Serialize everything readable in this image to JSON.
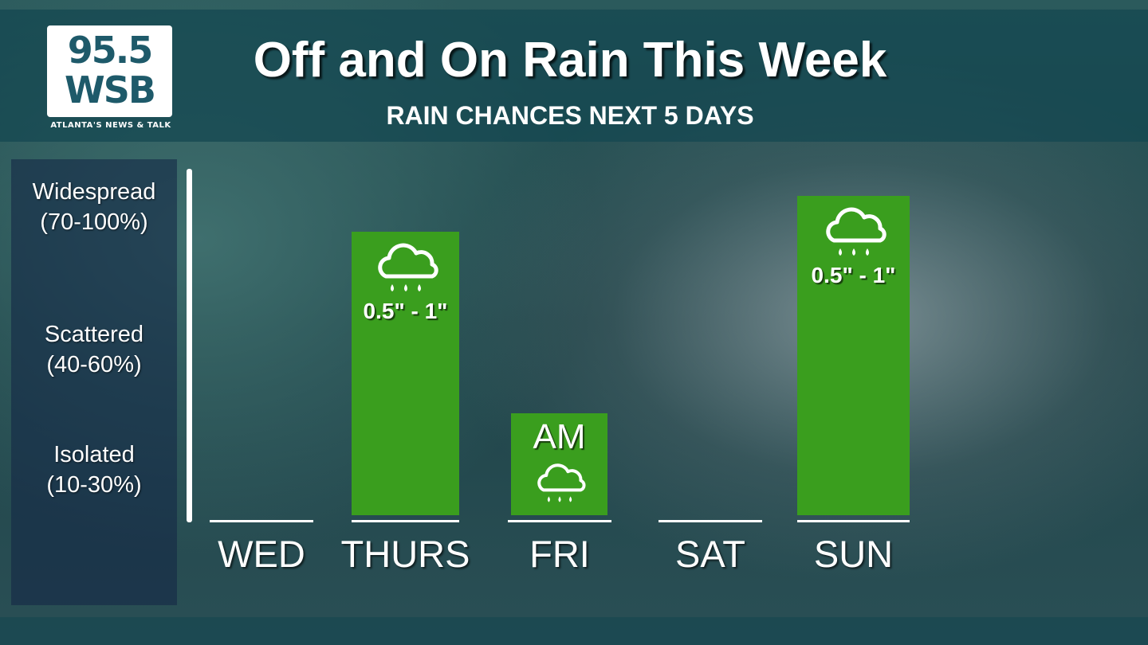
{
  "logo": {
    "line1": "95.5",
    "line2": "WSB",
    "tagline": "ATLANTA'S NEWS & TALK"
  },
  "header": {
    "title": "Off and On Rain This Week",
    "subtitle": "RAIN CHANCES NEXT 5 DAYS"
  },
  "colors": {
    "bar": "#3a9e1e",
    "text": "#ffffff"
  },
  "chart_data": {
    "type": "bar",
    "title": "Off and On Rain This Week",
    "subtitle": "RAIN CHANCES NEXT 5 DAYS",
    "categories": [
      "WED",
      "THURS",
      "FRI",
      "SAT",
      "SUN"
    ],
    "values": [
      0,
      80,
      30,
      0,
      90
    ],
    "unit": "% rain chance (approx.)",
    "ylim": [
      0,
      100
    ],
    "y_levels": [
      {
        "name": "Isolated",
        "range": "(10-30%)"
      },
      {
        "name": "Scattered",
        "range": "(40-60%)"
      },
      {
        "name": "Widespread",
        "range": "(70-100%)"
      }
    ],
    "bar_labels": [
      "",
      "0.5\" - 1\"",
      "AM",
      "",
      "0.5\" - 1\""
    ],
    "bar_icons": [
      "",
      "rain-cloud-icon",
      "rain-cloud-icon",
      "",
      "rain-cloud-icon"
    ],
    "grid": false,
    "legend": "none"
  }
}
